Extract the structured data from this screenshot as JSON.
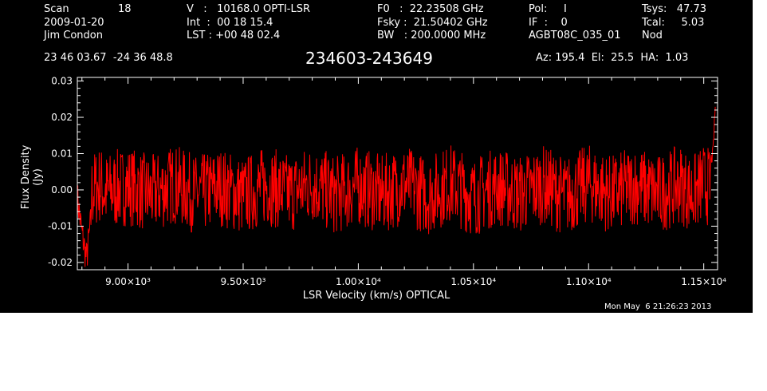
{
  "header": {
    "scan_label": "Scan",
    "scan_value": "18",
    "date": "2009-01-20",
    "observer": "Jim Condon",
    "ra_dec": "23 46 03.67  -24 36 48.8",
    "v_line": "V   :   10168.0 OPTI-LSR",
    "int_line": "Int  :  00 18 15.4",
    "lst_line": "LST : +00 48 02.4",
    "f0_line": "F0   :  22.23508 GHz",
    "fsky_line": "Fsky :  21.50402 GHz",
    "bw_line": "BW   : 200.0000 MHz",
    "pol_line": "Pol:     I",
    "if_line": "IF  :    0",
    "project": "AGBT08C_035_01",
    "tsys_line": "Tsys:   47.73",
    "tcal_line": "Tcal:     5.03",
    "mode": "Nod",
    "az_el_ha": "Az: 195.4  El:  25.5  HA:  1.03"
  },
  "source_name": "234603-243649",
  "timestamp": "Mon May  6 21:26:23 2013",
  "colors": {
    "background": "#000000",
    "axes": "#ffffff",
    "trace": "#ff0000"
  },
  "chart_data": {
    "type": "line",
    "title": "234603-243649",
    "xlabel": "LSR Velocity (km/s) OPTICAL",
    "ylabel": "Flux Density (Jy)",
    "xlim": [
      8780,
      11560
    ],
    "ylim": [
      -0.022,
      0.031
    ],
    "xticks": [
      9000,
      9500,
      10000,
      10500,
      11000,
      11500
    ],
    "xtick_labels": [
      "9.00×10³",
      "9.50×10³",
      "1.00×10⁴",
      "1.05×10⁴",
      "1.10×10⁴",
      "1.15×10⁴"
    ],
    "yticks": [
      -0.02,
      -0.01,
      0.0,
      0.01,
      0.02,
      0.03
    ],
    "ytick_labels": [
      "-0.02",
      "-0.01",
      "0.00",
      "0.01",
      "0.02",
      "0.03"
    ],
    "grid": false,
    "series": [
      {
        "color": "#ff0000",
        "x": [
          8780,
          8800,
          8820,
          8840,
          8860,
          8880,
          8900,
          9000,
          9100,
          9200,
          9300,
          9400,
          9500,
          9600,
          9700,
          9800,
          9900,
          10000,
          10100,
          10200,
          10300,
          10400,
          10500,
          10600,
          10700,
          10800,
          10900,
          11000,
          11100,
          11200,
          11300,
          11400,
          11450,
          11500,
          11520,
          11540,
          11550
        ],
        "y": [
          -0.002,
          -0.012,
          -0.019,
          -0.008,
          0.004,
          0.01,
          -0.005,
          0.008,
          -0.009,
          0.011,
          -0.01,
          0.006,
          -0.012,
          0.009,
          -0.007,
          0.012,
          -0.01,
          0.008,
          -0.009,
          0.011,
          -0.011,
          0.013,
          -0.013,
          0.007,
          -0.008,
          0.01,
          -0.012,
          0.012,
          -0.009,
          0.009,
          -0.008,
          0.011,
          -0.009,
          0.012,
          0.006,
          0.01,
          0.023
        ]
      }
    ]
  }
}
